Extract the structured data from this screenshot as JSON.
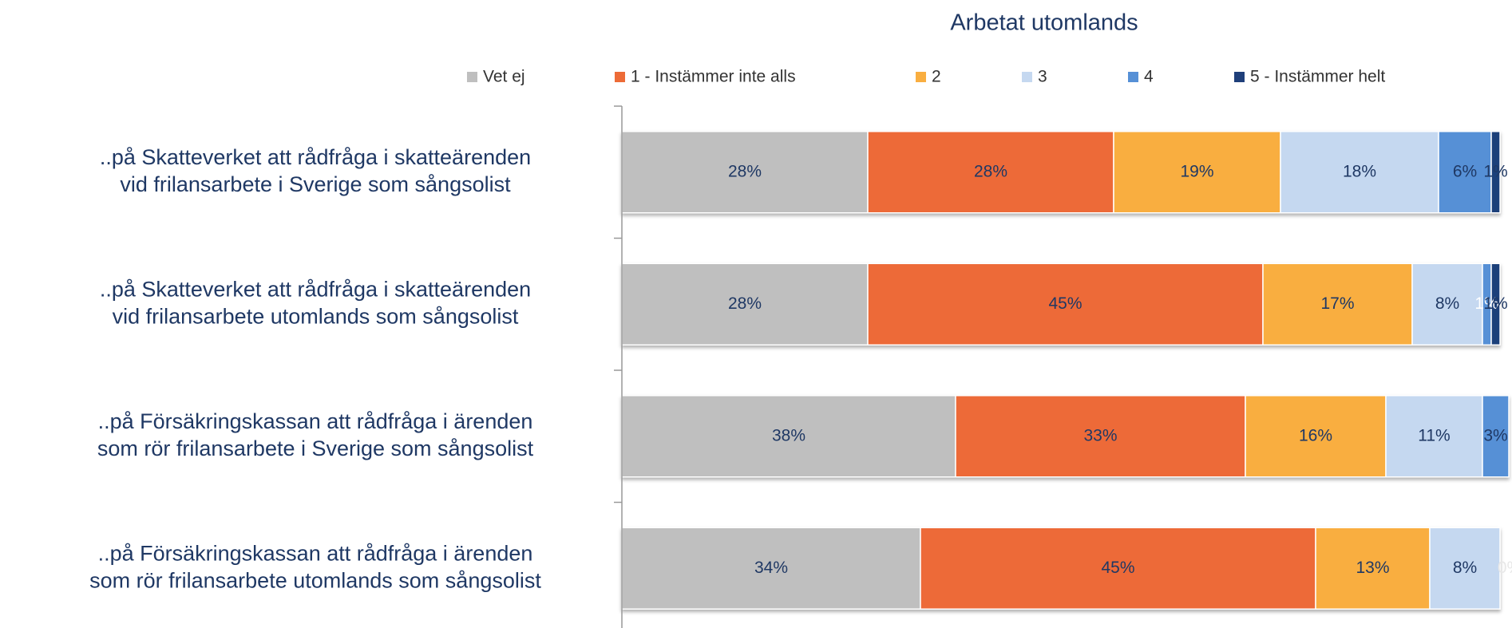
{
  "chart_data": {
    "type": "stacked-bar-horizontal",
    "title": "Arbetat utomlands",
    "categories": [
      [
        "..på Skatteverket att rådfråga i skatteärenden",
        "vid frilansarbete i Sverige som sångsolist"
      ],
      [
        "..på Skatteverket att rådfråga i skatteärenden",
        "vid frilansarbete utomlands som sångsolist"
      ],
      [
        "..på  Försäkringskassan att rådfråga i ärenden",
        "som rör frilansarbete i Sverige som sångsolist"
      ],
      [
        "..på Försäkringskassan att rådfråga i ärenden",
        "som rör frilansarbete utomlands som sångsolist"
      ]
    ],
    "xlim": [
      0,
      100
    ],
    "series": [
      {
        "name": "Vet ej",
        "color": "#bfbfbf",
        "values": [
          28,
          28,
          38,
          34
        ],
        "value_labels": [
          "28%",
          "28%",
          "38%",
          "34%"
        ]
      },
      {
        "name": "1 - Instämmer inte alls",
        "color": "#ed6b37",
        "values": [
          28,
          45,
          33,
          45
        ],
        "value_labels": [
          "28%",
          "45%",
          "33%",
          "45%"
        ]
      },
      {
        "name": "2",
        "color": "#f9ae40",
        "values": [
          19,
          17,
          16,
          13
        ],
        "value_labels": [
          "19%",
          "17%",
          "16%",
          "13%"
        ]
      },
      {
        "name": "3",
        "color": "#c5d8f0",
        "values": [
          18,
          8,
          11,
          8
        ],
        "value_labels": [
          "18%",
          "8%",
          "11%",
          "8%"
        ]
      },
      {
        "name": "4",
        "color": "#5690d6",
        "values": [
          6,
          1,
          3,
          0
        ],
        "value_labels": [
          "6%",
          "1%",
          "3%",
          "0%"
        ]
      },
      {
        "name": "5 - Instämmer helt",
        "color": "#1f3f7a",
        "values": [
          1,
          1,
          0,
          0
        ],
        "value_labels": [
          "1%",
          "1%",
          null,
          null
        ]
      }
    ],
    "legend": "top"
  }
}
